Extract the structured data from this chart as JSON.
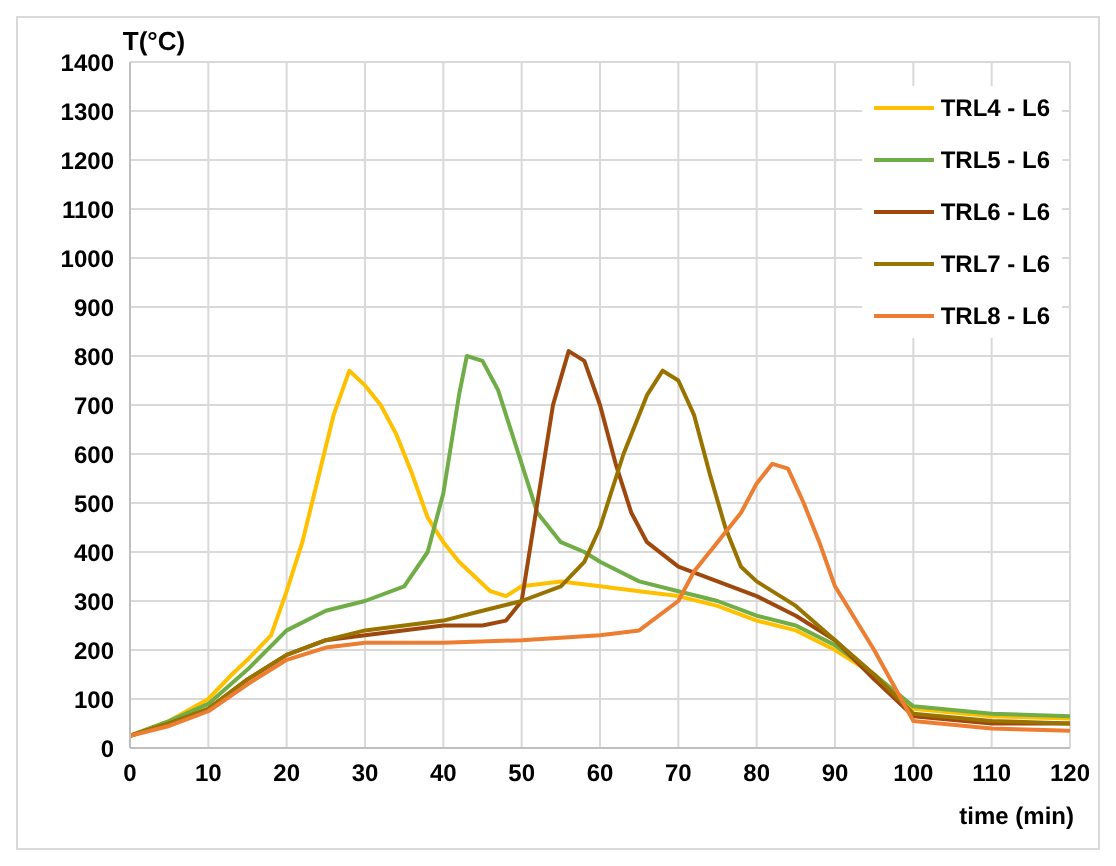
{
  "chart_data": {
    "type": "line",
    "xlabel": "time (min)",
    "ylabel": "T(°C)",
    "xlim": [
      0,
      120
    ],
    "xticks": [
      0,
      10,
      20,
      30,
      40,
      50,
      60,
      70,
      80,
      90,
      100,
      110,
      120
    ],
    "ylim": [
      0,
      1400
    ],
    "yticks": [
      0,
      100,
      200,
      300,
      400,
      500,
      600,
      700,
      800,
      900,
      1000,
      1100,
      1200,
      1300,
      1400
    ],
    "grid": true,
    "legend": "top right",
    "marker": "none",
    "line_style": "solid",
    "series": [
      {
        "name": "TRL4 - L6",
        "color": "#ffc000",
        "x": [
          0,
          5,
          10,
          13,
          15,
          18,
          20,
          22,
          24,
          26,
          28,
          30,
          32,
          34,
          36,
          38,
          40,
          42,
          44,
          46,
          48,
          50,
          55,
          60,
          65,
          70,
          75,
          80,
          85,
          90,
          95,
          100,
          110,
          120
        ],
        "values": [
          25,
          55,
          100,
          150,
          180,
          230,
          320,
          420,
          550,
          680,
          770,
          740,
          700,
          640,
          560,
          470,
          420,
          380,
          350,
          320,
          310,
          330,
          340,
          330,
          320,
          310,
          290,
          260,
          240,
          200,
          150,
          80,
          65,
          60
        ]
      },
      {
        "name": "TRL5 - L6",
        "color": "#70ad47",
        "x": [
          0,
          5,
          10,
          15,
          20,
          25,
          30,
          35,
          38,
          40,
          42,
          43,
          45,
          47,
          50,
          52,
          55,
          58,
          60,
          65,
          70,
          75,
          80,
          85,
          90,
          95,
          100,
          110,
          120
        ],
        "values": [
          25,
          55,
          90,
          160,
          240,
          280,
          300,
          330,
          400,
          520,
          720,
          800,
          790,
          730,
          580,
          480,
          420,
          400,
          380,
          340,
          320,
          300,
          270,
          250,
          210,
          150,
          85,
          70,
          65
        ]
      },
      {
        "name": "TRL6 - L6",
        "color": "#9e480e",
        "x": [
          0,
          5,
          10,
          15,
          20,
          25,
          30,
          40,
          45,
          48,
          50,
          52,
          54,
          56,
          58,
          60,
          62,
          64,
          66,
          70,
          75,
          80,
          85,
          90,
          95,
          100,
          110,
          120
        ],
        "values": [
          25,
          50,
          80,
          140,
          190,
          220,
          230,
          250,
          250,
          260,
          300,
          500,
          700,
          810,
          790,
          700,
          580,
          480,
          420,
          370,
          340,
          310,
          270,
          220,
          140,
          65,
          50,
          50
        ]
      },
      {
        "name": "TRL7 - L6",
        "color": "#997300",
        "x": [
          0,
          5,
          10,
          15,
          20,
          25,
          30,
          40,
          45,
          50,
          55,
          58,
          60,
          63,
          66,
          68,
          70,
          72,
          74,
          76,
          78,
          80,
          85,
          90,
          95,
          100,
          110,
          120
        ],
        "values": [
          25,
          50,
          80,
          140,
          190,
          220,
          240,
          260,
          280,
          300,
          330,
          380,
          450,
          600,
          720,
          770,
          750,
          680,
          560,
          450,
          370,
          340,
          290,
          220,
          150,
          70,
          55,
          50
        ]
      },
      {
        "name": "TRL8 - L6",
        "color": "#ed7d31",
        "x": [
          0,
          5,
          10,
          15,
          20,
          25,
          30,
          40,
          50,
          60,
          65,
          70,
          72,
          75,
          78,
          80,
          82,
          84,
          86,
          88,
          90,
          95,
          100,
          110,
          120
        ],
        "values": [
          25,
          45,
          75,
          130,
          180,
          205,
          215,
          215,
          220,
          230,
          240,
          300,
          360,
          420,
          480,
          540,
          580,
          570,
          500,
          420,
          330,
          200,
          55,
          40,
          35
        ]
      }
    ]
  }
}
